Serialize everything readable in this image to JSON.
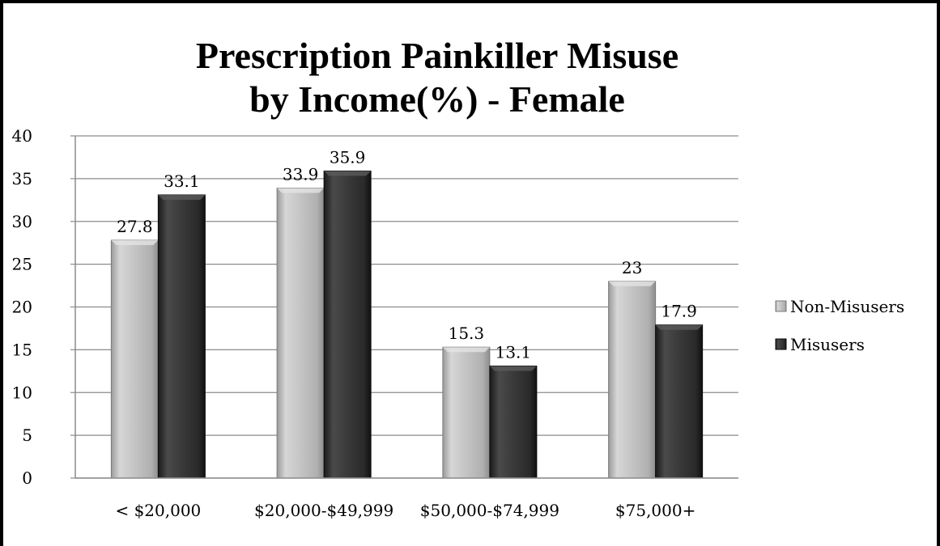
{
  "chart_data": {
    "type": "bar",
    "title_lines": [
      "Prescription Painkiller Misuse",
      "by Income(%) - Female"
    ],
    "categories": [
      "< $20,000",
      "$20,000-$49,999",
      "$50,000-$74,999",
      "$75,000+"
    ],
    "series": [
      {
        "name": "Non-Misusers",
        "values": [
          27.8,
          33.9,
          15.3,
          23
        ],
        "color": "#bdbdbd"
      },
      {
        "name": "Misusers",
        "values": [
          33.1,
          35.9,
          13.1,
          17.9
        ],
        "color": "#333333"
      }
    ],
    "ylim": [
      0,
      40
    ],
    "yticks": [
      0,
      5,
      10,
      15,
      20,
      25,
      30,
      35,
      40
    ],
    "grid": true,
    "legend_position": "right",
    "xlabel": "",
    "ylabel": ""
  }
}
